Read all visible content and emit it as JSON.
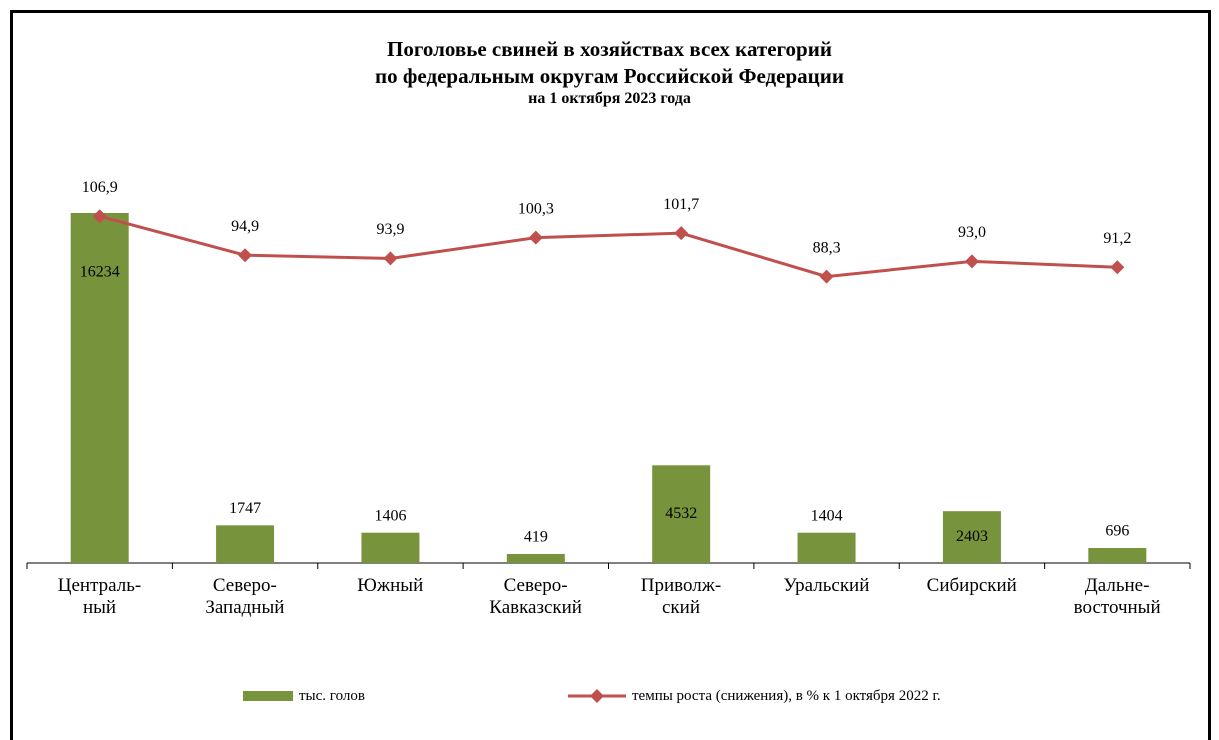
{
  "chart_data": {
    "type": "bar-line",
    "title": "Поголовье  свиней  в хозяйствах  всех категорий\nпо федеральным  округам  Российской  Федерации",
    "subtitle": "на 1 октября 2023  года",
    "categories": [
      "Централь-\nный",
      "Северо-\nЗападный",
      "Южный",
      "Северо-\nКавказский",
      "Приволж-\nский",
      "Уральский",
      "Сибирский",
      "Дальне-\nвосточный"
    ],
    "ylim": [
      0,
      17300
    ],
    "y2lim": [
      0,
      115
    ],
    "legend": "bottom",
    "series": [
      {
        "name": "тыс. голов",
        "type": "bar",
        "color": "#77933c",
        "values": [
          16234,
          1747,
          1406,
          419,
          4532,
          1404,
          2403,
          696
        ]
      },
      {
        "name": "темпы роста (снижения), в % к 1 октября 2022 г.",
        "type": "line",
        "axis": "y2",
        "color": "#c0504d",
        "values": [
          106.9,
          94.9,
          93.9,
          100.3,
          101.7,
          88.3,
          93.0,
          91.2
        ],
        "value_labels": [
          "106,9",
          "94,9",
          "93,9",
          "100,3",
          "101,7",
          "88,3",
          "93,0",
          "91,2"
        ]
      }
    ]
  }
}
